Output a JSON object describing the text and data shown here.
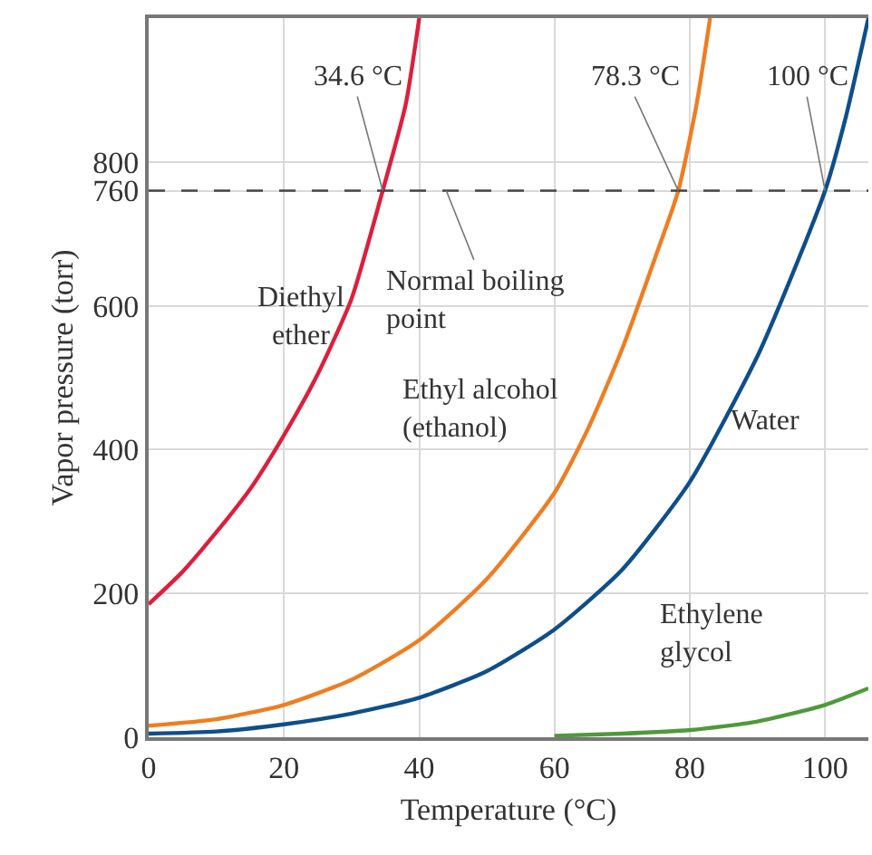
{
  "chart_data": {
    "type": "line",
    "xlabel": "Temperature (°C)",
    "ylabel": "Vapor pressure (torr)",
    "xlim": [
      0,
      106.4
    ],
    "ylim": [
      0,
      1000
    ],
    "xticks": [
      0,
      20,
      40,
      60,
      80,
      100
    ],
    "yticks": [
      0,
      200,
      400,
      600,
      760,
      800
    ],
    "grid": true,
    "legend": false,
    "line_style": "solid",
    "marker": "none",
    "series": [
      {
        "name": "Diethyl\nether",
        "color": "#dc1f3d",
        "x": [
          0,
          5,
          10,
          15,
          20,
          25,
          30,
          34.6,
          38,
          40
        ],
        "values": [
          185,
          230,
          285,
          345,
          420,
          505,
          610,
          760,
          880,
          1000
        ]
      },
      {
        "name": "Ethyl alcohol\n(ethanol)",
        "color": "#ef7d22",
        "x": [
          0,
          10,
          20,
          30,
          40,
          50,
          60,
          65,
          70,
          75,
          78.3,
          81,
          83
        ],
        "values": [
          16,
          25,
          45,
          80,
          135,
          220,
          340,
          430,
          540,
          670,
          760,
          880,
          1000
        ]
      },
      {
        "name": "Water",
        "color": "#0e4e8a",
        "x": [
          0,
          10,
          20,
          30,
          40,
          50,
          60,
          70,
          80,
          90,
          95,
          100,
          103,
          106.4
        ],
        "values": [
          5,
          8,
          18,
          33,
          55,
          92,
          150,
          233,
          355,
          530,
          640,
          760,
          860,
          1000
        ]
      },
      {
        "name": "Ethylene\nglycol",
        "color": "#4e9a3a",
        "x": [
          60,
          70,
          80,
          90,
          100,
          106.4
        ],
        "values": [
          2,
          5,
          10,
          22,
          45,
          68
        ]
      }
    ],
    "ref_lines": [
      {
        "axis": "y",
        "value": 760,
        "line_style": "dashed",
        "color": "#444444"
      }
    ],
    "annotations": [
      {
        "text": "34.6 °C",
        "x": 34.6,
        "y": 760
      },
      {
        "text": "78.3 °C",
        "x": 78.3,
        "y": 760
      },
      {
        "text": "100 °C",
        "x": 100,
        "y": 760
      },
      {
        "text": "Normal boiling\npoint",
        "x": 44,
        "y": 760
      }
    ]
  }
}
